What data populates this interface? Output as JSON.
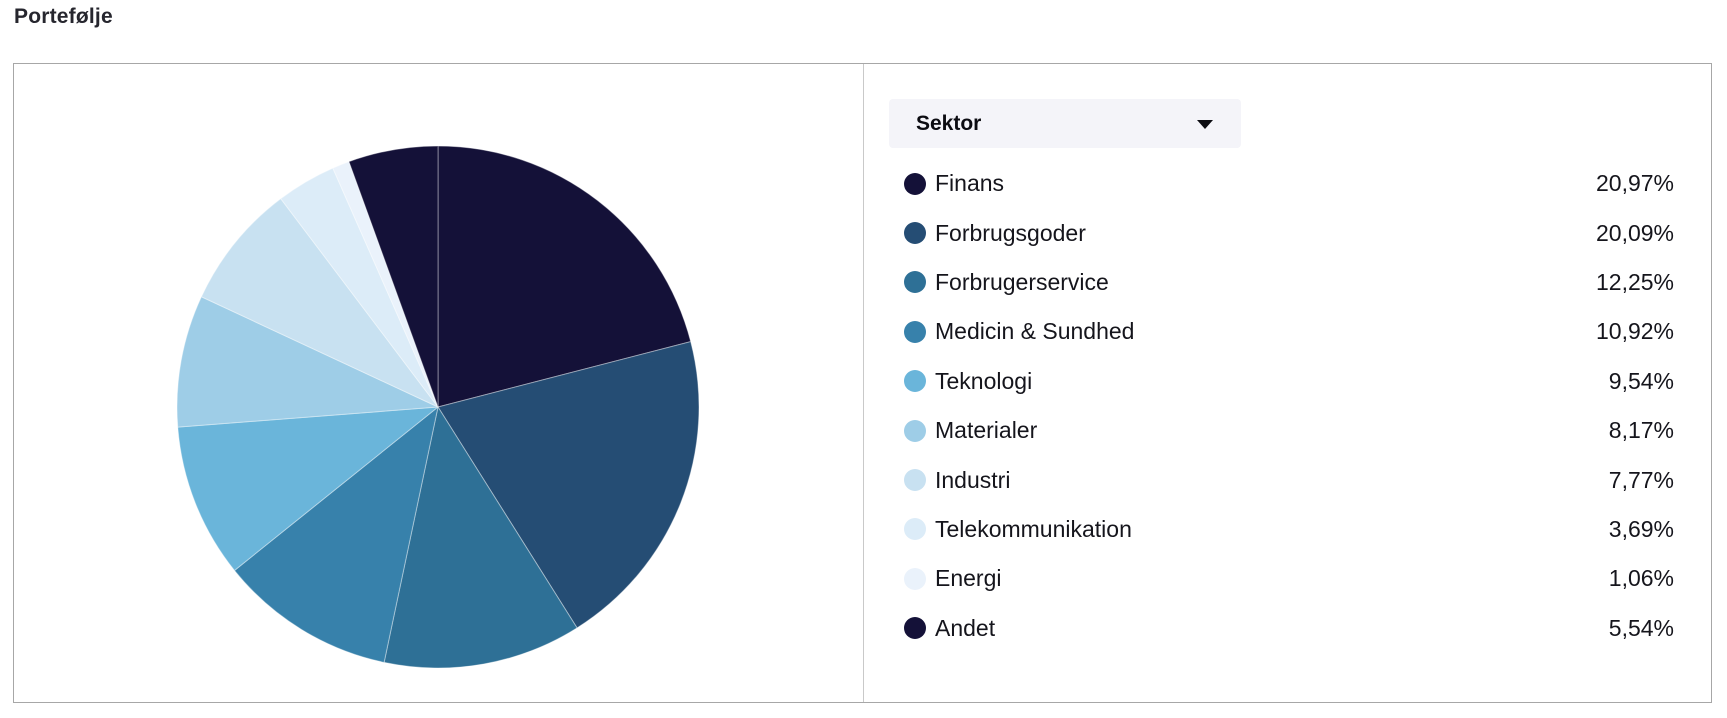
{
  "page": {
    "title": "Portefølje"
  },
  "panel": {
    "selector": {
      "label": "Sektor"
    }
  },
  "colors": {
    "card_border": "#a7a7a7",
    "panel_divider": "#c9c9c9",
    "selector_bg": "#f4f4f9",
    "text": "#15151c",
    "slice_separator": "rgba(255,255,255,0.4)"
  },
  "chart_data": {
    "type": "pie",
    "title": "Portefølje",
    "unit": "%",
    "legend_position": "right",
    "start_angle_deg": 0,
    "direction": "clockwise",
    "slices": [
      {
        "label": "Finans",
        "value": 20.97,
        "display": "20,97%",
        "color": "#141138"
      },
      {
        "label": "Forbrugsgoder",
        "value": 20.09,
        "display": "20,09%",
        "color": "#254d74"
      },
      {
        "label": "Forbrugerservice",
        "value": 12.25,
        "display": "12,25%",
        "color": "#2e7096"
      },
      {
        "label": "Medicin & Sundhed",
        "value": 10.92,
        "display": "10,92%",
        "color": "#3781ab"
      },
      {
        "label": "Teknologi",
        "value": 9.54,
        "display": "9,54%",
        "color": "#6ab5da"
      },
      {
        "label": "Materialer",
        "value": 8.17,
        "display": "8,17%",
        "color": "#9ecde7"
      },
      {
        "label": "Industri",
        "value": 7.77,
        "display": "7,77%",
        "color": "#c8e1f1"
      },
      {
        "label": "Telekommunikation",
        "value": 3.69,
        "display": "3,69%",
        "color": "#dcecf8"
      },
      {
        "label": "Energi",
        "value": 1.06,
        "display": "1,06%",
        "color": "#eaf2fb"
      },
      {
        "label": "Andet",
        "value": 5.54,
        "display": "5,54%",
        "color": "#141138"
      }
    ]
  }
}
